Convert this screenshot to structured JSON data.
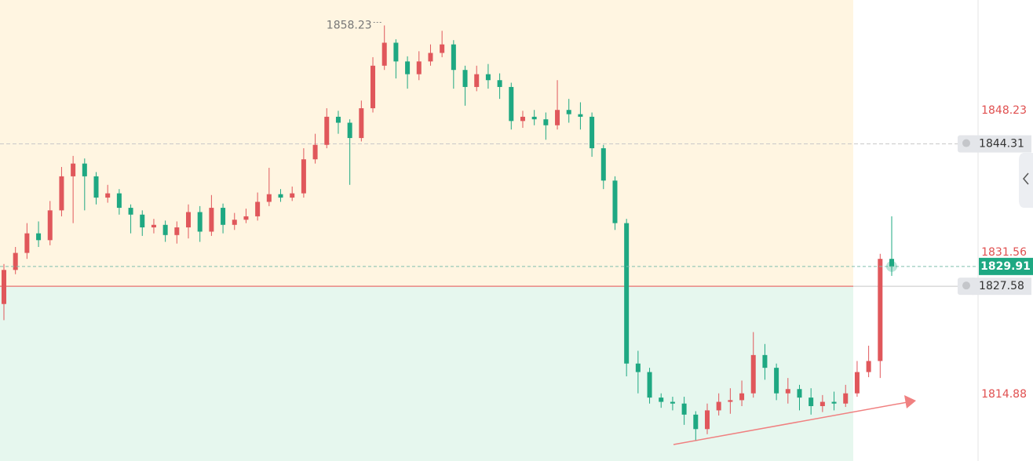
{
  "chart_data": {
    "type": "candlestick",
    "up_color": "#e0575b",
    "down_color": "#1ea882",
    "open": [
      1825.5,
      1829.5,
      1831.5,
      1833.8,
      1833.0,
      1836.5,
      1840.5,
      1842.0,
      1840.5,
      1838.0,
      1838.5,
      1836.8,
      1836.0,
      1834.5,
      1834.8,
      1833.6,
      1834.5,
      1836.3,
      1834.0,
      1836.8,
      1834.8,
      1835.4,
      1835.8,
      1837.5,
      1838.4,
      1838.0,
      1838.5,
      1842.5,
      1844.2,
      1847.5,
      1846.8,
      1845.0,
      1848.5,
      1853.5,
      1856.2,
      1854.0,
      1852.5,
      1854.0,
      1855.0,
      1856.0,
      1853.0,
      1851.0,
      1852.5,
      1851.8,
      1851.0,
      1847.0,
      1847.5,
      1847.2,
      1846.5,
      1848.3,
      1847.8,
      1847.5,
      1843.8,
      1840.0,
      1835.0,
      1818.5,
      1817.5,
      1814.5,
      1814.0,
      1813.8,
      1812.5,
      1810.8,
      1813.0,
      1814.0,
      1814.2,
      1815.0,
      1819.5,
      1818.0,
      1815.0,
      1815.5,
      1814.5,
      1813.5,
      1814.0,
      1813.8,
      1815.0,
      1817.5,
      1818.8,
      1830.8
    ],
    "high": [
      1830.2,
      1832.2,
      1835.0,
      1835.2,
      1837.6,
      1841.6,
      1842.9,
      1842.6,
      1841.0,
      1839.5,
      1839.0,
      1837.2,
      1836.5,
      1835.5,
      1835.3,
      1835.2,
      1837.2,
      1837.0,
      1838.3,
      1837.3,
      1836.2,
      1836.7,
      1838.6,
      1841.5,
      1839.0,
      1839.3,
      1843.8,
      1845.5,
      1848.5,
      1848.2,
      1847.2,
      1849.4,
      1854.5,
      1858.23,
      1856.6,
      1854.6,
      1855.2,
      1856.0,
      1857.6,
      1856.5,
      1853.5,
      1853.5,
      1853.7,
      1852.6,
      1851.5,
      1848.2,
      1848.3,
      1848.0,
      1851.8,
      1849.6,
      1849.2,
      1848.0,
      1844.2,
      1840.5,
      1835.5,
      1820.0,
      1818.0,
      1815.0,
      1814.6,
      1814.6,
      1812.9,
      1813.8,
      1815.0,
      1815.6,
      1816.5,
      1822.2,
      1820.8,
      1818.5,
      1816.8,
      1816.0,
      1815.6,
      1814.8,
      1815.2,
      1816.0,
      1818.8,
      1820.6,
      1831.4,
      1835.8
    ],
    "low": [
      1823.6,
      1829.0,
      1830.8,
      1832.2,
      1832.4,
      1835.8,
      1835.0,
      1836.5,
      1837.2,
      1837.4,
      1836.0,
      1833.8,
      1833.5,
      1833.8,
      1832.8,
      1832.6,
      1833.2,
      1832.8,
      1833.5,
      1833.8,
      1834.2,
      1835.0,
      1835.3,
      1837.0,
      1837.5,
      1837.6,
      1838.0,
      1842.0,
      1843.8,
      1845.5,
      1839.5,
      1844.6,
      1848.0,
      1853.0,
      1852.0,
      1850.8,
      1851.8,
      1853.5,
      1854.5,
      1850.8,
      1848.8,
      1850.5,
      1850.8,
      1849.6,
      1846.0,
      1846.2,
      1846.5,
      1844.8,
      1846.0,
      1846.8,
      1846.0,
      1842.8,
      1839.0,
      1834.2,
      1817.0,
      1815.0,
      1813.8,
      1813.3,
      1813.0,
      1811.3,
      1809.5,
      1810.2,
      1812.4,
      1812.6,
      1813.5,
      1814.5,
      1816.6,
      1814.2,
      1813.8,
      1813.0,
      1812.5,
      1812.8,
      1813.0,
      1813.4,
      1814.6,
      1816.9,
      1816.8,
      1828.8
    ],
    "close": [
      1829.5,
      1831.5,
      1833.8,
      1833.0,
      1836.5,
      1840.5,
      1842.0,
      1840.5,
      1838.0,
      1838.5,
      1836.8,
      1836.0,
      1834.5,
      1834.8,
      1833.6,
      1834.5,
      1836.3,
      1834.0,
      1836.8,
      1834.8,
      1835.4,
      1835.8,
      1837.5,
      1838.4,
      1838.0,
      1838.5,
      1842.5,
      1844.2,
      1847.5,
      1846.8,
      1845.0,
      1848.5,
      1853.5,
      1856.2,
      1854.0,
      1852.5,
      1854.0,
      1855.0,
      1856.0,
      1853.0,
      1851.0,
      1852.5,
      1851.8,
      1851.0,
      1847.0,
      1847.5,
      1847.2,
      1846.5,
      1848.3,
      1847.8,
      1847.5,
      1843.8,
      1840.0,
      1835.0,
      1818.5,
      1817.5,
      1814.5,
      1814.0,
      1813.8,
      1812.5,
      1810.8,
      1813.0,
      1814.0,
      1814.2,
      1815.0,
      1819.5,
      1818.0,
      1815.0,
      1815.5,
      1814.5,
      1813.5,
      1814.0,
      1813.8,
      1815.0,
      1817.5,
      1818.8,
      1830.8,
      1829.91
    ],
    "ylim": [
      1807.05,
      1861.22
    ],
    "yticks": [
      1848.23,
      1831.56,
      1814.88
    ],
    "alerts": [
      1844.31,
      1827.58
    ]
  }
}
